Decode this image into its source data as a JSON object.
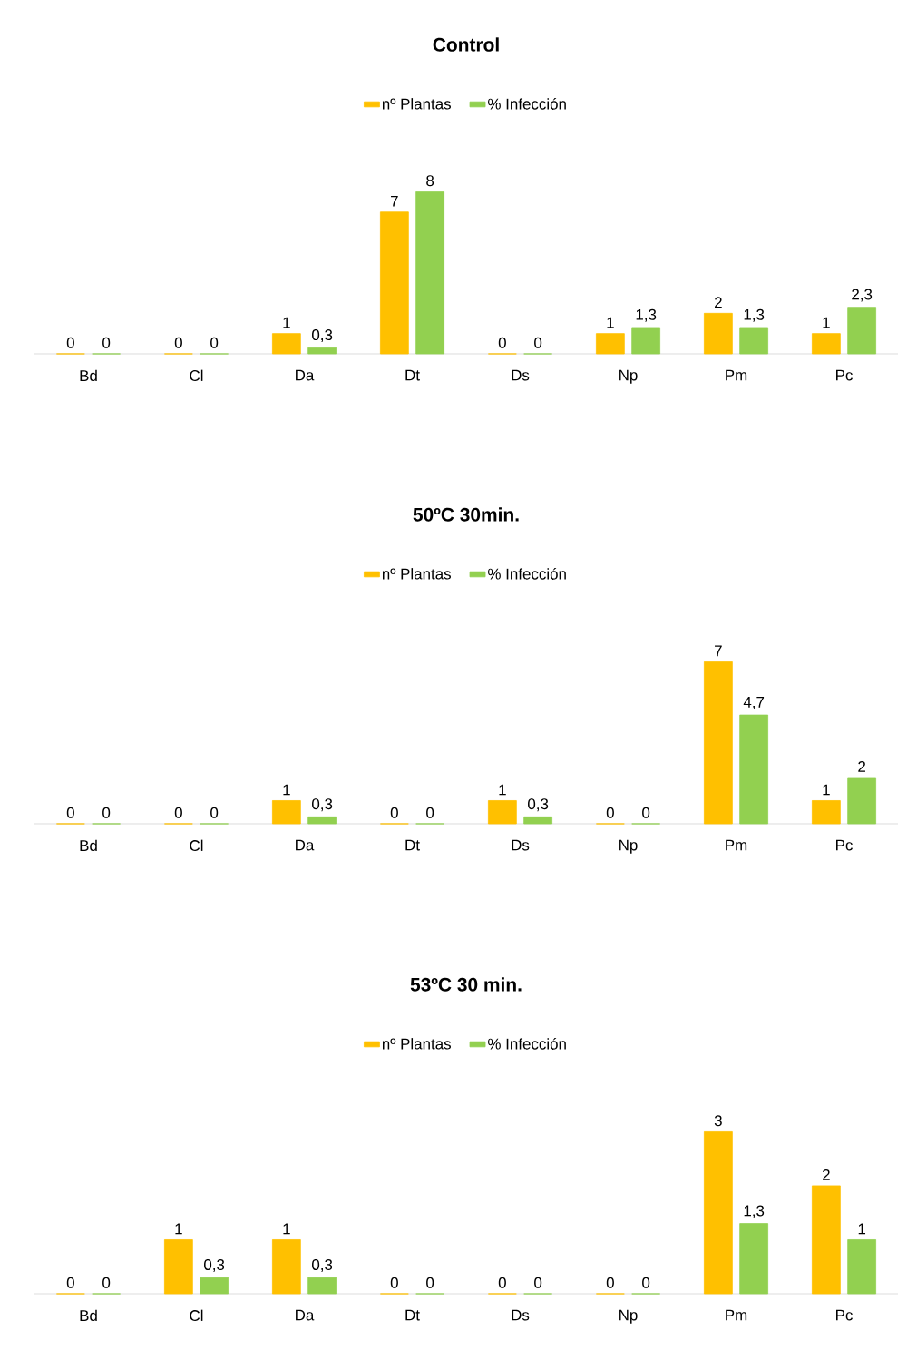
{
  "chart_data": [
    {
      "type": "bar",
      "title": "Control",
      "categories": [
        "Bd",
        "Cl",
        "Da",
        "Dt",
        "Ds",
        "Np",
        "Pm",
        "Pc"
      ],
      "legend": "top",
      "series": [
        {
          "name": "nº Plantas",
          "color": "#ffc000",
          "values": [
            0,
            0,
            1,
            7,
            0,
            1,
            2,
            1
          ],
          "value_labels": [
            "0",
            "0",
            "1",
            "7",
            "0",
            "1",
            "2",
            "1"
          ]
        },
        {
          "name": "% Infección",
          "color": "#92d050",
          "values": [
            0,
            0,
            0.3,
            8,
            0,
            1.3,
            1.3,
            2.3
          ],
          "value_labels": [
            "0",
            "0",
            "0,3",
            "8",
            "0",
            "1,3",
            "1,3",
            "2,3"
          ]
        }
      ]
    },
    {
      "type": "bar",
      "title": "50ºC 30min.",
      "categories": [
        "Bd",
        "Cl",
        "Da",
        "Dt",
        "Ds",
        "Np",
        "Pm",
        "Pc"
      ],
      "legend": "top",
      "series": [
        {
          "name": "nº Plantas",
          "color": "#ffc000",
          "values": [
            0,
            0,
            1,
            0,
            1,
            0,
            7,
            1
          ],
          "value_labels": [
            "0",
            "0",
            "1",
            "0",
            "1",
            "0",
            "7",
            "1"
          ]
        },
        {
          "name": "% Infección",
          "color": "#92d050",
          "values": [
            0,
            0,
            0.3,
            0,
            0.3,
            0,
            4.7,
            2
          ],
          "value_labels": [
            "0",
            "0",
            "0,3",
            "0",
            "0,3",
            "0",
            "4,7",
            "2"
          ]
        }
      ]
    },
    {
      "type": "bar",
      "title": "53ºC 30 min.",
      "categories": [
        "Bd",
        "Cl",
        "Da",
        "Dt",
        "Ds",
        "Np",
        "Pm",
        "Pc"
      ],
      "legend": "top",
      "series": [
        {
          "name": "nº Plantas",
          "color": "#ffc000",
          "values": [
            0,
            1,
            1,
            0,
            0,
            0,
            3,
            2
          ],
          "value_labels": [
            "0",
            "1",
            "1",
            "0",
            "0",
            "0",
            "3",
            "2"
          ]
        },
        {
          "name": "% Infección",
          "color": "#92d050",
          "values": [
            0,
            0.3,
            0.3,
            0,
            0,
            0,
            1.3,
            1
          ],
          "value_labels": [
            "0",
            "0,3",
            "0,3",
            "0",
            "0",
            "0",
            "1,3",
            "1"
          ]
        }
      ]
    }
  ]
}
